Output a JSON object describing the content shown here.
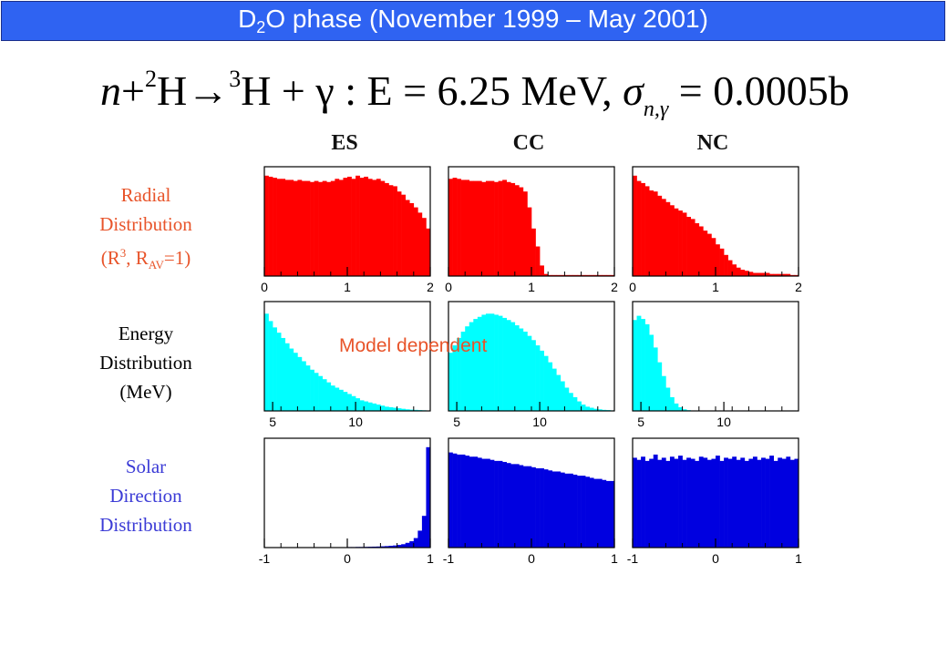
{
  "title": {
    "pre": "D",
    "sub": "2",
    "post": "O phase (November 1999 – May 2001)"
  },
  "formula": {
    "n": "n",
    "plus1": "+",
    "sup2": "2",
    "H1": "H",
    "arrow": "→",
    "sup3": "3",
    "H2": "H",
    "rest": " + γ  :  E = 6.25 MeV,  ",
    "sigma": "σ",
    "sigma_sub": "n,γ",
    "tail": " = 0.0005b"
  },
  "columns": [
    "ES",
    "CC",
    "NC"
  ],
  "rows": [
    {
      "label_lines": [
        "Radial",
        "Distribution"
      ],
      "label_math": {
        "open": "(R",
        "sup": "3",
        "mid": ", R",
        "sub": "AV",
        "close": "=1)"
      },
      "color": "#ff0000",
      "label_color": "#e8542a"
    },
    {
      "label_lines": [
        "Energy",
        "Distribution",
        "(MeV)"
      ],
      "color": "#00ffff",
      "label_color": "#000000"
    },
    {
      "label_lines": [
        "Solar",
        "Direction",
        "Distribution"
      ],
      "color": "#0000e0",
      "label_color": "#3b3bd6"
    }
  ],
  "annotation": "Model dependent",
  "chart_data": [
    {
      "type": "bar",
      "row": "Radial Distribution",
      "column": "ES",
      "xlim": [
        0,
        2
      ],
      "ticks": [
        "0",
        "1",
        "2"
      ],
      "tick_values": [
        0,
        1,
        2
      ],
      "bins": 40,
      "values": [
        0.95,
        0.94,
        0.93,
        0.92,
        0.92,
        0.91,
        0.91,
        0.9,
        0.91,
        0.9,
        0.9,
        0.89,
        0.9,
        0.89,
        0.9,
        0.89,
        0.9,
        0.92,
        0.91,
        0.93,
        0.94,
        0.92,
        0.95,
        0.93,
        0.94,
        0.92,
        0.91,
        0.92,
        0.9,
        0.88,
        0.86,
        0.85,
        0.8,
        0.77,
        0.72,
        0.69,
        0.65,
        0.6,
        0.55,
        0.45
      ]
    },
    {
      "type": "bar",
      "row": "Radial Distribution",
      "column": "CC",
      "xlim": [
        0,
        2
      ],
      "ticks": [
        "0",
        "1",
        "2"
      ],
      "tick_values": [
        0,
        1,
        2
      ],
      "bins": 40,
      "values": [
        0.92,
        0.93,
        0.92,
        0.91,
        0.91,
        0.9,
        0.9,
        0.9,
        0.89,
        0.9,
        0.9,
        0.89,
        0.9,
        0.91,
        0.89,
        0.88,
        0.86,
        0.84,
        0.8,
        0.65,
        0.45,
        0.28,
        0.1,
        0.02,
        0.01,
        0.01,
        0.01,
        0.01,
        0.01,
        0.01,
        0.01,
        0.01,
        0.01,
        0.01,
        0.01,
        0.01,
        0.01,
        0.01,
        0.01,
        0.01
      ]
    },
    {
      "type": "bar",
      "row": "Radial Distribution",
      "column": "NC",
      "xlim": [
        0,
        2
      ],
      "ticks": [
        "0",
        "1",
        "2"
      ],
      "tick_values": [
        0,
        1,
        2
      ],
      "bins": 40,
      "values": [
        0.95,
        0.9,
        0.88,
        0.85,
        0.81,
        0.8,
        0.76,
        0.73,
        0.7,
        0.67,
        0.64,
        0.62,
        0.6,
        0.56,
        0.54,
        0.5,
        0.47,
        0.43,
        0.4,
        0.36,
        0.3,
        0.26,
        0.2,
        0.15,
        0.11,
        0.08,
        0.06,
        0.05,
        0.04,
        0.03,
        0.03,
        0.03,
        0.03,
        0.02,
        0.02,
        0.02,
        0.02,
        0.02,
        0.01,
        0.01
      ]
    },
    {
      "type": "bar",
      "row": "Energy Distribution",
      "column": "ES",
      "xlim": [
        4.5,
        14.5
      ],
      "ticks": [
        "5",
        "10"
      ],
      "tick_values": [
        5,
        10
      ],
      "bins": 40,
      "values": [
        0.92,
        0.85,
        0.79,
        0.74,
        0.69,
        0.64,
        0.59,
        0.55,
        0.51,
        0.47,
        0.43,
        0.39,
        0.36,
        0.33,
        0.3,
        0.27,
        0.24,
        0.22,
        0.2,
        0.18,
        0.16,
        0.14,
        0.12,
        0.1,
        0.09,
        0.08,
        0.07,
        0.06,
        0.05,
        0.04,
        0.035,
        0.03,
        0.025,
        0.02,
        0.015,
        0.012,
        0.01,
        0.008,
        0.006,
        0.004
      ]
    },
    {
      "type": "bar",
      "row": "Energy Distribution",
      "column": "CC",
      "xlim": [
        4.5,
        14.5
      ],
      "ticks": [
        "5",
        "10"
      ],
      "tick_values": [
        5,
        10
      ],
      "bins": 40,
      "values": [
        0.55,
        0.62,
        0.69,
        0.75,
        0.8,
        0.84,
        0.87,
        0.89,
        0.91,
        0.92,
        0.92,
        0.91,
        0.9,
        0.88,
        0.86,
        0.84,
        0.81,
        0.78,
        0.75,
        0.71,
        0.67,
        0.62,
        0.57,
        0.52,
        0.46,
        0.4,
        0.34,
        0.28,
        0.22,
        0.17,
        0.13,
        0.09,
        0.06,
        0.04,
        0.03,
        0.02,
        0.015,
        0.01,
        0.008,
        0.005
      ]
    },
    {
      "type": "bar",
      "row": "Energy Distribution",
      "column": "NC",
      "xlim": [
        4.5,
        14.5
      ],
      "ticks": [
        "5",
        "10"
      ],
      "tick_values": [
        5,
        10
      ],
      "bins": 40,
      "values": [
        0.86,
        0.9,
        0.87,
        0.82,
        0.72,
        0.6,
        0.46,
        0.33,
        0.22,
        0.13,
        0.07,
        0.035,
        0.015,
        0.007,
        0.003,
        0.001,
        0,
        0,
        0,
        0,
        0,
        0,
        0,
        0,
        0,
        0,
        0,
        0,
        0,
        0,
        0,
        0,
        0,
        0,
        0,
        0,
        0,
        0,
        0,
        0
      ]
    },
    {
      "type": "bar",
      "row": "Solar Direction Distribution",
      "column": "ES",
      "xlim": [
        -1,
        1
      ],
      "ticks": [
        "-1",
        "0",
        "1"
      ],
      "tick_values": [
        -1,
        0,
        1
      ],
      "bins": 40,
      "values": [
        0.004,
        0.004,
        0.004,
        0.004,
        0.004,
        0.004,
        0.004,
        0.004,
        0.004,
        0.004,
        0.004,
        0.004,
        0.004,
        0.004,
        0.004,
        0.004,
        0.004,
        0.004,
        0.004,
        0.004,
        0.005,
        0.005,
        0.006,
        0.006,
        0.007,
        0.008,
        0.009,
        0.01,
        0.012,
        0.014,
        0.017,
        0.02,
        0.025,
        0.032,
        0.045,
        0.06,
        0.09,
        0.16,
        0.3,
        0.95
      ]
    },
    {
      "type": "bar",
      "row": "Solar Direction Distribution",
      "column": "CC",
      "xlim": [
        -1,
        1
      ],
      "ticks": [
        "-1",
        "0",
        "1"
      ],
      "tick_values": [
        -1,
        0,
        1
      ],
      "bins": 40,
      "values": [
        0.9,
        0.89,
        0.88,
        0.88,
        0.87,
        0.86,
        0.86,
        0.85,
        0.84,
        0.84,
        0.83,
        0.82,
        0.82,
        0.81,
        0.8,
        0.79,
        0.79,
        0.78,
        0.77,
        0.77,
        0.76,
        0.75,
        0.75,
        0.74,
        0.73,
        0.72,
        0.72,
        0.71,
        0.7,
        0.7,
        0.69,
        0.68,
        0.68,
        0.67,
        0.66,
        0.65,
        0.65,
        0.64,
        0.63,
        0.63
      ]
    },
    {
      "type": "bar",
      "row": "Solar Direction Distribution",
      "column": "NC",
      "xlim": [
        -1,
        1
      ],
      "ticks": [
        "-1",
        "0",
        "1"
      ],
      "tick_values": [
        -1,
        0,
        1
      ],
      "bins": 40,
      "values": [
        0.85,
        0.83,
        0.86,
        0.82,
        0.84,
        0.88,
        0.83,
        0.85,
        0.82,
        0.86,
        0.84,
        0.87,
        0.83,
        0.85,
        0.84,
        0.82,
        0.86,
        0.85,
        0.83,
        0.84,
        0.87,
        0.82,
        0.85,
        0.84,
        0.86,
        0.83,
        0.85,
        0.82,
        0.84,
        0.86,
        0.83,
        0.85,
        0.84,
        0.87,
        0.82,
        0.85,
        0.84,
        0.86,
        0.83,
        0.84
      ]
    }
  ]
}
